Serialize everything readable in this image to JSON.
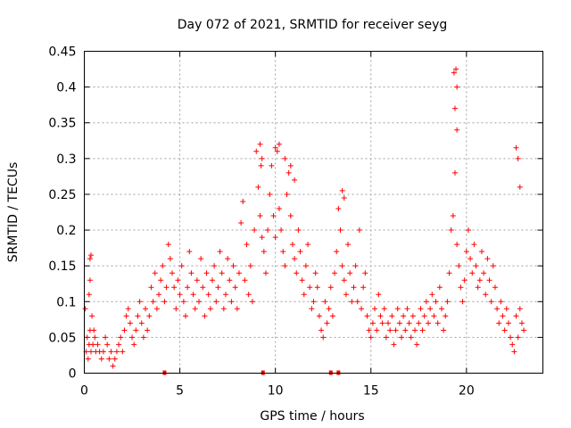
{
  "chart_data": {
    "type": "scatter",
    "title": "Day 072 of 2021, SRMTID for receiver seyg",
    "xlabel": "GPS time / hours",
    "ylabel": "SRMTID / TECUs",
    "xlim": [
      0,
      24
    ],
    "ylim": [
      0,
      0.45
    ],
    "xticks": [
      0,
      5,
      10,
      15,
      20
    ],
    "yticks": [
      0,
      0.05,
      0.1,
      0.15,
      0.2,
      0.25,
      0.3,
      0.35,
      0.4,
      0.45
    ],
    "xtick_labels": [
      "0",
      "5",
      "10",
      "15",
      "20"
    ],
    "ytick_labels": [
      "0",
      "0.05",
      "0.1",
      "0.15",
      "0.2",
      "0.25",
      "0.3",
      "0.35",
      "0.4",
      "0.45"
    ],
    "grid": true,
    "marker": "+",
    "color": "#ff0000",
    "gap_markers": [
      4.2,
      9.35,
      12.9,
      13.3
    ],
    "series": [
      {
        "name": "SRMTID",
        "x": [
          0.05,
          0.1,
          0.15,
          0.2,
          0.25,
          0.3,
          0.35,
          0.4,
          0.45,
          0.5,
          0.55,
          0.6,
          0.7,
          0.8,
          0.9,
          1.0,
          1.1,
          1.2,
          1.3,
          1.4,
          1.5,
          1.6,
          1.7,
          1.8,
          1.9,
          2.0,
          0.25,
          0.3,
          0.35,
          0.3,
          2.1,
          2.2,
          2.3,
          2.4,
          2.5,
          2.6,
          2.7,
          2.8,
          2.9,
          3.0,
          3.1,
          3.2,
          3.3,
          3.4,
          3.5,
          3.6,
          3.7,
          3.8,
          3.9,
          4.0,
          4.1,
          4.2,
          4.3,
          4.4,
          4.5,
          4.6,
          4.7,
          4.8,
          4.9,
          5.0,
          5.1,
          5.2,
          5.3,
          5.4,
          5.5,
          5.6,
          5.7,
          5.8,
          5.9,
          6.0,
          6.1,
          6.2,
          6.3,
          6.4,
          6.5,
          6.6,
          6.7,
          6.8,
          6.9,
          7.0,
          7.1,
          7.2,
          7.3,
          7.4,
          7.5,
          7.6,
          7.7,
          7.8,
          7.9,
          8.0,
          8.1,
          8.2,
          8.3,
          8.4,
          8.5,
          8.6,
          8.7,
          8.8,
          8.9,
          9.0,
          9.1,
          9.2,
          9.3,
          9.4,
          9.5,
          9.6,
          9.7,
          9.8,
          9.9,
          10.0,
          10.1,
          10.2,
          10.3,
          10.4,
          10.5,
          10.6,
          10.7,
          10.8,
          10.9,
          11.0,
          11.1,
          11.2,
          11.3,
          11.4,
          11.5,
          11.6,
          11.7,
          11.8,
          11.9,
          12.0,
          12.1,
          12.2,
          12.3,
          12.4,
          12.5,
          12.6,
          12.7,
          12.8,
          12.9,
          13.0,
          13.1,
          13.2,
          13.3,
          13.4,
          13.5,
          13.6,
          13.7,
          13.8,
          13.9,
          14.0,
          14.1,
          14.2,
          14.3,
          14.4,
          14.5,
          14.6,
          14.7,
          14.8,
          14.9,
          15.0,
          15.1,
          15.2,
          15.3,
          15.4,
          15.5,
          15.6,
          15.7,
          15.8,
          15.9,
          16.0,
          16.1,
          16.2,
          16.3,
          16.4,
          16.5,
          16.6,
          16.7,
          16.8,
          16.9,
          17.0,
          17.1,
          17.2,
          17.3,
          17.4,
          17.5,
          17.6,
          17.7,
          17.8,
          17.9,
          18.0,
          18.1,
          18.2,
          18.3,
          18.4,
          18.5,
          18.6,
          18.7,
          18.8,
          18.9,
          19.0,
          19.1,
          19.2,
          19.3,
          19.4,
          19.5,
          19.6,
          19.7,
          19.8,
          19.9,
          20.0,
          20.1,
          20.2,
          20.3,
          20.4,
          20.5,
          20.6,
          20.7,
          20.8,
          20.9,
          21.0,
          21.1,
          21.2,
          21.3,
          21.4,
          21.5,
          21.6,
          21.7,
          21.8,
          21.9,
          22.0,
          22.1,
          22.2,
          22.3,
          22.4,
          22.5,
          22.6,
          22.7,
          22.8,
          22.9,
          23.0,
          9.2,
          9.3,
          9.25,
          10.0,
          10.2,
          10.5,
          10.8,
          11.0,
          19.35,
          19.45,
          19.5,
          19.4,
          19.5,
          22.6,
          22.7,
          22.8,
          13.5,
          13.6
        ],
        "y": [
          0.09,
          0.03,
          0.05,
          0.02,
          0.04,
          0.06,
          0.03,
          0.08,
          0.04,
          0.06,
          0.05,
          0.03,
          0.04,
          0.03,
          0.02,
          0.03,
          0.05,
          0.04,
          0.02,
          0.03,
          0.01,
          0.02,
          0.03,
          0.04,
          0.05,
          0.03,
          0.11,
          0.13,
          0.165,
          0.16,
          0.06,
          0.08,
          0.09,
          0.07,
          0.05,
          0.04,
          0.06,
          0.08,
          0.1,
          0.07,
          0.05,
          0.09,
          0.06,
          0.08,
          0.12,
          0.1,
          0.14,
          0.09,
          0.11,
          0.13,
          0.15,
          0.1,
          0.12,
          0.18,
          0.16,
          0.14,
          0.12,
          0.09,
          0.13,
          0.11,
          0.15,
          0.1,
          0.08,
          0.12,
          0.17,
          0.14,
          0.11,
          0.09,
          0.13,
          0.1,
          0.16,
          0.12,
          0.08,
          0.14,
          0.11,
          0.09,
          0.13,
          0.15,
          0.1,
          0.12,
          0.17,
          0.14,
          0.09,
          0.11,
          0.16,
          0.13,
          0.1,
          0.15,
          0.12,
          0.09,
          0.14,
          0.21,
          0.24,
          0.13,
          0.18,
          0.11,
          0.15,
          0.1,
          0.2,
          0.31,
          0.26,
          0.22,
          0.19,
          0.17,
          0.14,
          0.2,
          0.25,
          0.29,
          0.22,
          0.19,
          0.31,
          0.23,
          0.2,
          0.17,
          0.15,
          0.25,
          0.28,
          0.22,
          0.18,
          0.16,
          0.14,
          0.2,
          0.17,
          0.13,
          0.11,
          0.15,
          0.18,
          0.12,
          0.09,
          0.1,
          0.14,
          0.12,
          0.08,
          0.06,
          0.05,
          0.1,
          0.07,
          0.09,
          0.12,
          0.08,
          0.14,
          0.17,
          0.23,
          0.2,
          0.15,
          0.13,
          0.11,
          0.18,
          0.14,
          0.1,
          0.12,
          0.15,
          0.1,
          0.2,
          0.09,
          0.12,
          0.14,
          0.08,
          0.06,
          0.05,
          0.07,
          0.09,
          0.06,
          0.11,
          0.08,
          0.07,
          0.09,
          0.05,
          0.07,
          0.06,
          0.08,
          0.04,
          0.06,
          0.09,
          0.07,
          0.05,
          0.08,
          0.06,
          0.09,
          0.07,
          0.05,
          0.08,
          0.06,
          0.04,
          0.07,
          0.09,
          0.06,
          0.08,
          0.1,
          0.07,
          0.09,
          0.11,
          0.08,
          0.1,
          0.07,
          0.12,
          0.09,
          0.06,
          0.08,
          0.1,
          0.14,
          0.2,
          0.22,
          0.28,
          0.18,
          0.15,
          0.12,
          0.1,
          0.13,
          0.17,
          0.2,
          0.16,
          0.14,
          0.18,
          0.15,
          0.12,
          0.13,
          0.17,
          0.14,
          0.11,
          0.16,
          0.13,
          0.1,
          0.15,
          0.12,
          0.09,
          0.07,
          0.1,
          0.08,
          0.06,
          0.09,
          0.07,
          0.05,
          0.04,
          0.03,
          0.08,
          0.05,
          0.09,
          0.07,
          0.06,
          0.32,
          0.3,
          0.29,
          0.315,
          0.32,
          0.3,
          0.29,
          0.27,
          0.42,
          0.425,
          0.4,
          0.37,
          0.34,
          0.315,
          0.3,
          0.26,
          0.255,
          0.245
        ]
      }
    ]
  }
}
